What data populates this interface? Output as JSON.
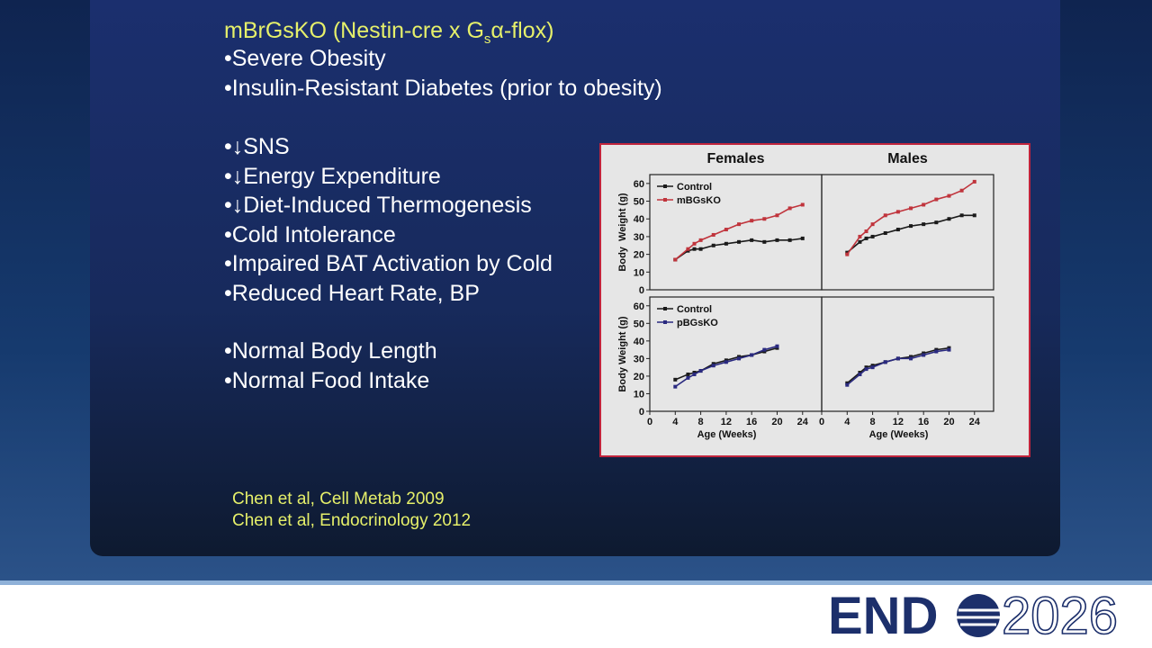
{
  "slide": {
    "heading": [
      "mBrGsKO (Nestin-cre x G",
      "s",
      "α-flox)"
    ],
    "bullets_a": [
      "•Severe Obesity",
      "•Insulin-Resistant Diabetes (prior to obesity)"
    ],
    "bullets_b": [
      "•↓SNS",
      "•↓Energy Expenditure",
      "•↓Diet-Induced Thermogenesis",
      "•Cold Intolerance",
      "•Impaired BAT Activation by Cold",
      "•Reduced Heart Rate, BP"
    ],
    "bullets_c": [
      "•Normal Body Length",
      "•Normal Food Intake"
    ],
    "references": [
      "Chen et al, Cell Metab 2009",
      "Chen et al, Endocrinology 2012"
    ],
    "logo": [
      "END",
      "2026"
    ]
  },
  "chart_data": [
    {
      "type": "line",
      "title": "Females",
      "ylabel": "Body  Weight (g)",
      "x": [
        4,
        6,
        7,
        8,
        10,
        12,
        14,
        16,
        18,
        20,
        22,
        24
      ],
      "series": [
        {
          "name": "Control",
          "color": "#1a1a1a",
          "values": [
            17,
            22,
            23,
            23,
            25,
            26,
            27,
            28,
            27,
            28,
            28,
            29
          ]
        },
        {
          "name": "mBGsKO",
          "color": "#c0343c",
          "values": [
            17,
            23,
            26,
            28,
            31,
            34,
            37,
            39,
            40,
            42,
            46,
            48
          ]
        }
      ],
      "xlim": [
        0,
        27
      ],
      "ylim": [
        0,
        65
      ],
      "yticks": [
        0,
        10,
        20,
        30,
        40,
        50,
        60
      ]
    },
    {
      "type": "line",
      "title": "Males",
      "x": [
        4,
        6,
        7,
        8,
        10,
        12,
        14,
        16,
        18,
        20,
        22,
        24
      ],
      "series": [
        {
          "color": "#1a1a1a",
          "values": [
            21,
            27,
            29,
            30,
            32,
            34,
            36,
            37,
            38,
            40,
            42,
            42
          ]
        },
        {
          "color": "#c0343c",
          "values": [
            20,
            30,
            33,
            37,
            42,
            44,
            46,
            48,
            51,
            53,
            56,
            61
          ]
        }
      ],
      "xlim": [
        0,
        27
      ],
      "ylim": [
        0,
        65
      ]
    },
    {
      "type": "line",
      "ylabel": "Body Weight (g)",
      "xlabel": "Age (Weeks)",
      "x": [
        4,
        6,
        7,
        8,
        10,
        12,
        14,
        16,
        18,
        20
      ],
      "series": [
        {
          "name": "Control",
          "color": "#1a1a1a",
          "values": [
            18,
            21,
            22,
            23,
            27,
            29,
            31,
            32,
            34,
            36
          ]
        },
        {
          "name": "pBGsKO",
          "color": "#2a2a80",
          "values": [
            14,
            19,
            21,
            23,
            26,
            28,
            30,
            32,
            35,
            37
          ]
        }
      ],
      "xlim": [
        0,
        27
      ],
      "ylim": [
        0,
        65
      ],
      "xticks": [
        0,
        4,
        8,
        12,
        16,
        20,
        24
      ],
      "yticks": [
        0,
        10,
        20,
        30,
        40,
        50,
        60
      ]
    },
    {
      "type": "line",
      "xlabel": "Age (Weeks)",
      "x": [
        4,
        6,
        7,
        8,
        10,
        12,
        14,
        16,
        18,
        20
      ],
      "series": [
        {
          "color": "#1a1a1a",
          "values": [
            16,
            22,
            25,
            26,
            28,
            30,
            31,
            33,
            35,
            36
          ]
        },
        {
          "color": "#2a2a80",
          "values": [
            15,
            21,
            24,
            25,
            28,
            30,
            30,
            32,
            34,
            35
          ]
        }
      ],
      "xlim": [
        0,
        27
      ],
      "ylim": [
        0,
        65
      ],
      "xticks": [
        0,
        4,
        8,
        12,
        16,
        20,
        24
      ]
    }
  ]
}
